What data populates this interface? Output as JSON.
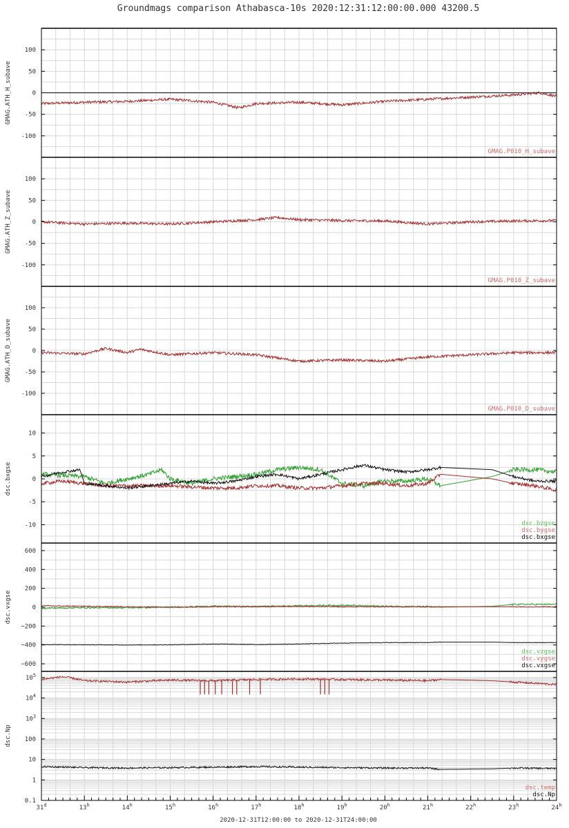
{
  "page": {
    "title": "Groundmags comparison Athabasca-10s 2020:12:31:12:00:00.000 43200.5"
  },
  "colors": {
    "red": "#a52a2a",
    "red_label": "#d36b6b",
    "green": "#2ca02c",
    "green_label": "#55c055",
    "black": "#111111",
    "grid": "#d8d8d8"
  },
  "x_axis": {
    "range": [
      "2020-12-31T12:00",
      "2020-12-31T24:00"
    ],
    "ticks": [
      {
        "value": 12,
        "label": "31",
        "sup": "d"
      },
      {
        "value": 13,
        "label": "13",
        "sup": "h"
      },
      {
        "value": 14,
        "label": "14",
        "sup": "h"
      },
      {
        "value": 15,
        "label": "15",
        "sup": "h"
      },
      {
        "value": 16,
        "label": "16",
        "sup": "h"
      },
      {
        "value": 17,
        "label": "17",
        "sup": "h"
      },
      {
        "value": 18,
        "label": "18",
        "sup": "h"
      },
      {
        "value": 19,
        "label": "19",
        "sup": "h"
      },
      {
        "value": 20,
        "label": "20",
        "sup": "h"
      },
      {
        "value": 21,
        "label": "21",
        "sup": "h"
      },
      {
        "value": 22,
        "label": "22",
        "sup": "h"
      },
      {
        "value": 23,
        "label": "23",
        "sup": "h"
      },
      {
        "value": 24,
        "label": "24",
        "sup": "h"
      }
    ],
    "caption": "2020-12-31T12:00:00 to 2020-12-31T24:00:00"
  },
  "chart_data": [
    {
      "type": "line",
      "ylabel": "GMAG.ATH_H_subave",
      "ylim": [
        -150,
        150
      ],
      "yticks": [
        {
          "v": 100,
          "label": "100"
        },
        {
          "v": 50,
          "label": "50"
        },
        {
          "v": 0,
          "label": "0"
        },
        {
          "v": -50,
          "label": "-50"
        },
        {
          "v": -100,
          "label": "-100"
        }
      ],
      "zero_line": true,
      "legend": [
        {
          "name": "GMAG.P010_H_subave",
          "color": "red"
        }
      ],
      "series": [
        {
          "name": "GMAG.P010_H_subave",
          "color": "red",
          "noise": 3,
          "x": [
            12,
            13,
            14,
            15,
            16,
            16.6,
            17,
            18,
            19,
            20,
            21,
            22,
            23,
            23.6,
            24
          ],
          "y": [
            -25,
            -22,
            -20,
            -15,
            -22,
            -35,
            -25,
            -22,
            -28,
            -20,
            -15,
            -10,
            -5,
            0,
            -8
          ]
        }
      ]
    },
    {
      "type": "line",
      "ylabel": "GMAG.ATH_Z_subave",
      "ylim": [
        -150,
        150
      ],
      "yticks": [
        {
          "v": 100,
          "label": "100"
        },
        {
          "v": 50,
          "label": "50"
        },
        {
          "v": 0,
          "label": "0"
        },
        {
          "v": -50,
          "label": "-50"
        },
        {
          "v": -100,
          "label": "-100"
        }
      ],
      "zero_line": false,
      "legend": [
        {
          "name": "GMAG.P010_Z_subave",
          "color": "red"
        }
      ],
      "series": [
        {
          "name": "GMAG.P010_Z_subave",
          "color": "red",
          "noise": 3,
          "x": [
            12,
            13,
            14,
            15,
            16,
            17,
            17.5,
            18,
            19,
            20,
            21,
            22,
            23,
            24
          ],
          "y": [
            0,
            -5,
            -3,
            -5,
            0,
            5,
            10,
            5,
            3,
            2,
            -5,
            0,
            2,
            3
          ]
        }
      ]
    },
    {
      "type": "line",
      "ylabel": "GMAG.ATH_D_subave",
      "ylim": [
        -150,
        150
      ],
      "yticks": [
        {
          "v": 100,
          "label": "100"
        },
        {
          "v": 50,
          "label": "50"
        },
        {
          "v": 0,
          "label": "0"
        },
        {
          "v": -50,
          "label": "-50"
        },
        {
          "v": -100,
          "label": "-100"
        }
      ],
      "zero_line": false,
      "legend": [
        {
          "name": "GMAG.P010_D_subave",
          "color": "red"
        }
      ],
      "series": [
        {
          "name": "GMAG.P010_D_subave",
          "color": "red",
          "noise": 3,
          "x": [
            12,
            13,
            13.5,
            14,
            14.3,
            15,
            16,
            17,
            18,
            19,
            20,
            21,
            22,
            23,
            24
          ],
          "y": [
            -5,
            -8,
            5,
            -5,
            3,
            -10,
            -5,
            -10,
            -25,
            -22,
            -25,
            -15,
            -10,
            -5,
            -5
          ]
        }
      ]
    },
    {
      "type": "line",
      "ylabel": "dsc.bxgse",
      "ylim": [
        -14,
        14
      ],
      "yticks": [
        {
          "v": 10,
          "label": "10"
        },
        {
          "v": 5,
          "label": "5"
        },
        {
          "v": 0,
          "label": "0"
        },
        {
          "v": -5,
          "label": "-5"
        },
        {
          "v": -10,
          "label": "-10"
        }
      ],
      "zero_line": false,
      "legend": [
        {
          "name": "dsc.bzgse",
          "color": "green"
        },
        {
          "name": "dsc.bygse",
          "color": "red"
        },
        {
          "name": "dsc.bxgse",
          "color": "black"
        }
      ],
      "series": [
        {
          "name": "dsc.bzgse",
          "color": "green",
          "noise": 0.5,
          "x": [
            12,
            13,
            13.5,
            14,
            14.5,
            14.8,
            15,
            15.5,
            16,
            16.5,
            17,
            17.5,
            18,
            18.5,
            19,
            19.5,
            20,
            20.5,
            21,
            21.3,
            22.5,
            23,
            23.5,
            24
          ],
          "y": [
            1,
            0.5,
            -1,
            0,
            1,
            2,
            0,
            -1,
            0,
            0.5,
            1,
            2,
            2.5,
            2,
            -1,
            -1.5,
            -0.5,
            -0.5,
            0,
            -1.5,
            0.5,
            2,
            2,
            1.5
          ]
        },
        {
          "name": "dsc.bygse",
          "color": "red",
          "noise": 0.4,
          "x": [
            12,
            12.5,
            13,
            13.5,
            14,
            15,
            16,
            16.5,
            17,
            17.5,
            18,
            18.5,
            19,
            19.5,
            20,
            20.5,
            21,
            21.3,
            22.5,
            23,
            23.5,
            24
          ],
          "y": [
            -1,
            -0.5,
            -1,
            -1.5,
            -1.5,
            -1.5,
            -2,
            -2,
            -1.5,
            -1.5,
            -2,
            -2,
            -1.5,
            -1,
            -1,
            -1.5,
            -1,
            1,
            0,
            -1,
            -1.5,
            -2.5
          ]
        },
        {
          "name": "dsc.bxgse",
          "color": "black",
          "noise": 0.3,
          "x": [
            12,
            12.5,
            12.9,
            13,
            13.5,
            14,
            14.5,
            15,
            15.5,
            16,
            16.5,
            17,
            17.5,
            18,
            18.5,
            19,
            19.5,
            20,
            20.5,
            21,
            21.3,
            22.5,
            23,
            23.5,
            24
          ],
          "y": [
            0.5,
            1.5,
            2,
            -1,
            -1.5,
            -2,
            -1.5,
            -1,
            -0.5,
            -1,
            -0.5,
            0.5,
            1,
            0,
            1,
            2,
            3,
            2,
            1.5,
            2,
            2.5,
            2,
            0.5,
            -0.5,
            -0.5
          ]
        }
      ]
    },
    {
      "type": "line",
      "ylabel": "dsc.vxgse",
      "ylim": [
        -680,
        680
      ],
      "yticks": [
        {
          "v": 600,
          "label": "600"
        },
        {
          "v": 400,
          "label": "400"
        },
        {
          "v": 200,
          "label": "200"
        },
        {
          "v": 0,
          "label": "0"
        },
        {
          "v": -200,
          "label": "−200"
        },
        {
          "v": -400,
          "label": "−400"
        },
        {
          "v": -600,
          "label": "−600"
        }
      ],
      "zero_line": false,
      "legend": [
        {
          "name": "dsc.vzgse",
          "color": "green"
        },
        {
          "name": "dsc.vygse",
          "color": "red"
        },
        {
          "name": "dsc.vxgse",
          "color": "black"
        }
      ],
      "series": [
        {
          "name": "dsc.vzgse",
          "color": "green",
          "noise": 8,
          "x": [
            12,
            13,
            14,
            15,
            16,
            17,
            18,
            19,
            20,
            21,
            21.3,
            22.5,
            23,
            24
          ],
          "y": [
            -10,
            -5,
            -5,
            0,
            10,
            5,
            15,
            20,
            10,
            5,
            0,
            10,
            30,
            30
          ]
        },
        {
          "name": "dsc.vygse",
          "color": "red",
          "noise": 5,
          "x": [
            12,
            13,
            14,
            15,
            16,
            17,
            18,
            19,
            20,
            21,
            22,
            23,
            24
          ],
          "y": [
            15,
            10,
            5,
            0,
            5,
            8,
            10,
            5,
            5,
            5,
            5,
            5,
            5
          ]
        },
        {
          "name": "dsc.vxgse",
          "color": "black",
          "noise": 3,
          "x": [
            12,
            13,
            14,
            15,
            16,
            17,
            18,
            19,
            20,
            21,
            21.3,
            22.5,
            23,
            24
          ],
          "y": [
            -395,
            -398,
            -400,
            -398,
            -390,
            -395,
            -390,
            -380,
            -375,
            -375,
            -370,
            -370,
            -375,
            -375
          ]
        }
      ]
    },
    {
      "type": "line",
      "ylabel": "dsc.Np",
      "yscale": "log",
      "ylim": [
        0.1,
        200000
      ],
      "yticks": [
        {
          "v": 100000,
          "label": "10",
          "sup": "5"
        },
        {
          "v": 10000,
          "label": "10",
          "sup": "4"
        },
        {
          "v": 1000,
          "label": "10",
          "sup": "3"
        },
        {
          "v": 100,
          "label": "100"
        },
        {
          "v": 10,
          "label": "10"
        },
        {
          "v": 1,
          "label": "1"
        },
        {
          "v": 0.1,
          "label": "0.1"
        }
      ],
      "zero_line": false,
      "legend": [
        {
          "name": "dsc.temp",
          "color": "red"
        },
        {
          "name": "dsc.Np",
          "color": "black"
        }
      ],
      "series": [
        {
          "name": "dsc.temp",
          "color": "red",
          "noise": 0.05,
          "log": true,
          "x": [
            12,
            12.5,
            13,
            14,
            15,
            16,
            17,
            18,
            19,
            20,
            21,
            21.3,
            22.5,
            23,
            24
          ],
          "y": [
            80000,
            110000,
            70000,
            60000,
            75000,
            70000,
            80000,
            85000,
            80000,
            75000,
            70000,
            80000,
            70000,
            60000,
            45000
          ]
        },
        {
          "name": "dsc.Np",
          "color": "black",
          "noise": 0.04,
          "log": true,
          "x": [
            12,
            13,
            14,
            15,
            16,
            17,
            18,
            19,
            20,
            21,
            21.3,
            22.5,
            23,
            24
          ],
          "y": [
            4.5,
            4,
            3.8,
            4,
            4.2,
            4.5,
            4.2,
            4,
            3.8,
            3.8,
            3.3,
            3.5,
            3.8,
            3.6
          ]
        }
      ],
      "dropouts": {
        "color": "red",
        "x": [
          15.7,
          15.8,
          15.9,
          16.05,
          16.2,
          16.45,
          16.55,
          16.85,
          17.1,
          18.5,
          18.6,
          18.7
        ],
        "to": 15000
      }
    }
  ]
}
